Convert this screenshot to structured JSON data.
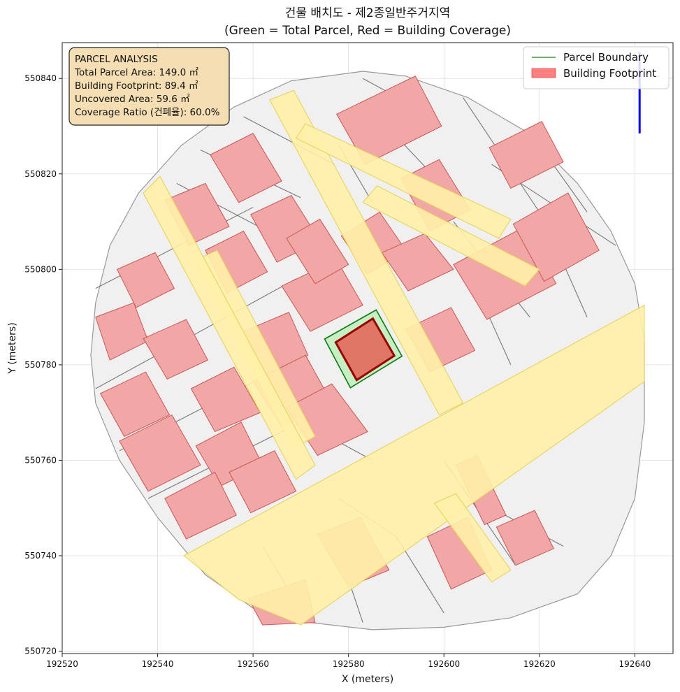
{
  "title": {
    "line1": "건물 배치도 - 제2종일반주거지역",
    "line2": "(Green = Total Parcel, Red = Building Coverage)"
  },
  "axes": {
    "xlabel": "X (meters)",
    "ylabel": "Y (meters)",
    "xlim": [
      192520,
      192648
    ],
    "ylim": [
      550719.5,
      550847.5
    ],
    "xticks": [
      "192520",
      "192540",
      "192560",
      "192580",
      "192600",
      "192620",
      "192640"
    ],
    "yticks": [
      "550720",
      "550740",
      "550760",
      "550780",
      "550800",
      "550820",
      "550840"
    ],
    "grid": true
  },
  "info_box": {
    "title": "PARCEL ANALYSIS",
    "lines": [
      "Total Parcel Area: 149.0 ㎡",
      "Building Footprint: 89.4 ㎡",
      "Uncovered Area: 59.6 ㎡",
      "Coverage Ratio (건폐율): 60.0%"
    ]
  },
  "legend": {
    "placement": "top-right",
    "items": [
      {
        "label": "Parcel Boundary",
        "color": "#1a7f1a"
      },
      {
        "label": "Building Footprint",
        "color": "#ff7f7f"
      }
    ]
  },
  "colors": {
    "parcel_fill": "#c4f0c4",
    "parcel_edge": "#117711",
    "building_fill": "#e07766",
    "building_edge": "#990000",
    "context_building": "#f2a7a7",
    "road": "#fff1a8",
    "lot": "#f0f0f0",
    "north_arrow": "#0000ee"
  },
  "chart_data": {
    "type": "map",
    "parcel_polygon": [
      [
        192575,
        550785.4
      ],
      [
        192585.8,
        550791.5
      ],
      [
        192591.2,
        550781.8
      ],
      [
        192580.4,
        550775.2
      ]
    ],
    "building_polygon": [
      [
        192577.3,
        550784.7
      ],
      [
        192585.1,
        550789.7
      ],
      [
        192589.6,
        550781.9
      ],
      [
        192581.7,
        550776.8
      ]
    ],
    "total_parcel_area_m2": 149.0,
    "building_footprint_m2": 89.4,
    "uncovered_area_m2": 59.6,
    "coverage_ratio_pct": 60.0,
    "north_arrow": {
      "x": 192641,
      "y_from": 550828.5,
      "y_to": 550845.5
    },
    "context_boundary": [
      [
        192583,
        550841.5
      ],
      [
        192592,
        550840.5
      ],
      [
        192605,
        550836
      ],
      [
        192617,
        550829
      ],
      [
        192628,
        550818
      ],
      [
        192635,
        550808
      ],
      [
        192640,
        550797
      ],
      [
        192642,
        550785
      ],
      [
        192642,
        550768
      ],
      [
        192640,
        550752
      ],
      [
        192635,
        550740
      ],
      [
        192628,
        550732
      ],
      [
        192614,
        550727
      ],
      [
        192600,
        550725
      ],
      [
        192585,
        550724.5
      ],
      [
        192572,
        550726
      ],
      [
        192560,
        550729
      ],
      [
        192550,
        550736
      ],
      [
        192540,
        550748
      ],
      [
        192532,
        550760
      ],
      [
        192527,
        550772
      ],
      [
        192526,
        550782
      ],
      [
        192527,
        550793
      ],
      [
        192530,
        550805
      ],
      [
        192536,
        550816
      ],
      [
        192545,
        550826
      ],
      [
        192556,
        550834
      ],
      [
        192568,
        550839.5
      ]
    ],
    "roads": [
      [
        [
          192570,
          550725.5
        ],
        [
          192557,
          550730.8
        ],
        [
          192545.5,
          550740
        ],
        [
          192642,
          550792.5
        ],
        [
          192642,
          550776.5
        ]
      ],
      [
        [
          192563.5,
          550835.5
        ],
        [
          192568.5,
          550837.5
        ],
        [
          192604,
          550772
        ],
        [
          192599,
          550769.5
        ]
      ],
      [
        [
          192548,
          550802
        ],
        [
          192552.5,
          550804
        ],
        [
          192573,
          550765
        ],
        [
          192568.5,
          550762.5
        ]
      ],
      [
        [
          192537,
          550816
        ],
        [
          192540.5,
          550819.5
        ],
        [
          192573,
          550759
        ],
        [
          192569,
          550756
        ]
      ],
      [
        [
          192598,
          550751
        ],
        [
          192602.5,
          550753
        ],
        [
          192614,
          550737
        ],
        [
          192610,
          550734.5
        ]
      ],
      [
        [
          192569,
          550827.5
        ],
        [
          192571,
          550830.5
        ],
        [
          192614,
          550810.5
        ],
        [
          192611.5,
          550806.5
        ]
      ],
      [
        [
          192583,
          550814
        ],
        [
          192586,
          550817.5
        ],
        [
          192620,
          550800
        ],
        [
          192617,
          550796.5
        ]
      ]
    ],
    "lot_lines": [
      [
        [
          192527,
          550796
        ],
        [
          192560,
          550813
        ]
      ],
      [
        [
          192527,
          550775
        ],
        [
          192569,
          550798
        ]
      ],
      [
        [
          192532,
          550762
        ],
        [
          192571,
          550782
        ]
      ],
      [
        [
          192538,
          550752
        ],
        [
          192576,
          550771
        ]
      ],
      [
        [
          192549,
          550825
        ],
        [
          192570,
          550815
        ]
      ],
      [
        [
          192544,
          550818
        ],
        [
          192563,
          550808
        ]
      ],
      [
        [
          192558,
          550832
        ],
        [
          192577,
          550822
        ]
      ],
      [
        [
          192583,
          550840
        ],
        [
          192594,
          550834
        ]
      ],
      [
        [
          192604,
          550836
        ],
        [
          192620,
          550812
        ]
      ],
      [
        [
          192620,
          550826
        ],
        [
          192630,
          550812
        ]
      ],
      [
        [
          192602,
          550810
        ],
        [
          192618,
          550790
        ]
      ],
      [
        [
          192610,
          550822
        ],
        [
          192636,
          550805
        ]
      ],
      [
        [
          192588,
          550830
        ],
        [
          192605,
          550812
        ]
      ],
      [
        [
          192578,
          550826
        ],
        [
          192585,
          550814
        ]
      ],
      [
        [
          192605,
          550800
        ],
        [
          192614,
          550780
        ]
      ],
      [
        [
          192622,
          550808
        ],
        [
          192630,
          550790
        ]
      ],
      [
        [
          192590,
          550744
        ],
        [
          192600,
          550728
        ]
      ],
      [
        [
          192600,
          550760
        ],
        [
          192615,
          550738
        ]
      ],
      [
        [
          192610,
          550750
        ],
        [
          192625,
          550742
        ]
      ],
      [
        [
          192574,
          550766
        ],
        [
          192585,
          550760
        ]
      ],
      [
        [
          192578,
          550752
        ],
        [
          192590,
          550744
        ]
      ],
      [
        [
          192580,
          550735
        ],
        [
          192583,
          550726
        ]
      ],
      [
        [
          192562,
          550742
        ],
        [
          192568,
          550732
        ]
      ]
    ],
    "context_buildings": [
      [
        [
          192541.5,
          550814.5
        ],
        [
          192550,
          550818
        ],
        [
          192555,
          550809
        ],
        [
          192546.5,
          550805
        ]
      ],
      [
        [
          192551,
          550824
        ],
        [
          192560,
          550828.5
        ],
        [
          192566,
          550818.5
        ],
        [
          192557,
          550814
        ]
      ],
      [
        [
          192559.5,
          550811.5
        ],
        [
          192568,
          550815.5
        ],
        [
          192574,
          550806
        ],
        [
          192565,
          550801.5
        ]
      ],
      [
        [
          192550,
          550804
        ],
        [
          192558,
          550808
        ],
        [
          192563,
          550799.5
        ],
        [
          192554.5,
          550795
        ]
      ],
      [
        [
          192531.5,
          550800
        ],
        [
          192539.5,
          550803.5
        ],
        [
          192543.5,
          550796
        ],
        [
          192535.5,
          550792
        ]
      ],
      [
        [
          192527,
          550790
        ],
        [
          192535,
          550793
        ],
        [
          192538,
          550785
        ],
        [
          192530,
          550781
        ]
      ],
      [
        [
          192537,
          550785.5
        ],
        [
          192546,
          550789.5
        ],
        [
          192550.5,
          550781
        ],
        [
          192542,
          550777
        ]
      ],
      [
        [
          192547,
          550775
        ],
        [
          192556,
          550779.5
        ],
        [
          192561.5,
          550770
        ],
        [
          192552,
          550766
        ]
      ],
      [
        [
          192528,
          550774
        ],
        [
          192537.5,
          550778.5
        ],
        [
          192542.5,
          550769.5
        ],
        [
          192533,
          550765
        ]
      ],
      [
        [
          192532,
          550764
        ],
        [
          192543,
          550769.5
        ],
        [
          192549,
          550759
        ],
        [
          192538,
          550753.5
        ]
      ],
      [
        [
          192548,
          550763
        ],
        [
          192557.5,
          550768
        ],
        [
          192562,
          550759
        ],
        [
          192553,
          550754.5
        ]
      ],
      [
        [
          192558,
          550787
        ],
        [
          192567.5,
          550791
        ],
        [
          192571.5,
          550782
        ],
        [
          192562,
          550777.5
        ]
      ],
      [
        [
          192560,
          550776.5
        ],
        [
          192571,
          550782
        ],
        [
          192576.5,
          550772
        ],
        [
          192566,
          550767
        ]
      ],
      [
        [
          192567,
          550771
        ],
        [
          192576.5,
          550776
        ],
        [
          192584,
          550766
        ],
        [
          192573.5,
          550761
        ]
      ],
      [
        [
          192566,
          550796.5
        ],
        [
          192577.5,
          550802
        ],
        [
          192583,
          550792.5
        ],
        [
          192572,
          550787
        ]
      ],
      [
        [
          192567,
          550806.5
        ],
        [
          192574,
          550810.5
        ],
        [
          192580,
          550801
        ],
        [
          192573,
          550797
        ]
      ],
      [
        [
          192578.5,
          550807
        ],
        [
          192586.5,
          550812
        ],
        [
          192592,
          550804
        ],
        [
          192584,
          550799
        ]
      ],
      [
        [
          192577.5,
          550832.5
        ],
        [
          192594,
          550840.5
        ],
        [
          192599.5,
          550830
        ],
        [
          192583.5,
          550822
        ]
      ],
      [
        [
          192591,
          550819
        ],
        [
          192599,
          550823
        ],
        [
          192605.5,
          550812.5
        ],
        [
          192597,
          550808
        ]
      ],
      [
        [
          192587,
          550803.5
        ],
        [
          192596,
          550807.5
        ],
        [
          192602,
          550800
        ],
        [
          192592.5,
          550795.5
        ]
      ],
      [
        [
          192592,
          550787.5
        ],
        [
          192601.5,
          550792
        ],
        [
          192606.5,
          550783
        ],
        [
          192597,
          550778.5
        ]
      ],
      [
        [
          192602,
          550801
        ],
        [
          192617,
          550809
        ],
        [
          192623.5,
          550797
        ],
        [
          192609,
          550789.5
        ]
      ],
      [
        [
          192614.5,
          550809.5
        ],
        [
          192626,
          550816
        ],
        [
          192632.5,
          550804
        ],
        [
          192621,
          550797.5
        ]
      ],
      [
        [
          192609.5,
          550825.5
        ],
        [
          192620.5,
          550831
        ],
        [
          192625,
          550822.5
        ],
        [
          192614,
          550817
        ]
      ],
      [
        [
          192602.5,
          550759
        ],
        [
          192607,
          550761
        ],
        [
          192613,
          550748.5
        ],
        [
          192608.5,
          550746.5
        ]
      ],
      [
        [
          192611,
          550746
        ],
        [
          192619,
          550749.5
        ],
        [
          192623,
          550741.5
        ],
        [
          192615,
          550738
        ]
      ],
      [
        [
          192596.5,
          550744
        ],
        [
          192605,
          550748
        ],
        [
          192610,
          550737
        ],
        [
          192601.5,
          550733
        ]
      ],
      [
        [
          192573.5,
          550744.5
        ],
        [
          192582.5,
          550748
        ],
        [
          192588.5,
          550737
        ],
        [
          192580,
          550733.5
        ]
      ],
      [
        [
          192559,
          550731
        ],
        [
          192571,
          550735
        ],
        [
          192573,
          550726
        ],
        [
          192562,
          550725.5
        ]
      ],
      [
        [
          192541.5,
          550752
        ],
        [
          192552,
          550757.5
        ],
        [
          192556.5,
          550748.5
        ],
        [
          192546,
          550743.5
        ]
      ],
      [
        [
          192555,
          550757.5
        ],
        [
          192564.5,
          550762
        ],
        [
          192569,
          550753.5
        ],
        [
          192559.5,
          550749
        ]
      ]
    ]
  }
}
